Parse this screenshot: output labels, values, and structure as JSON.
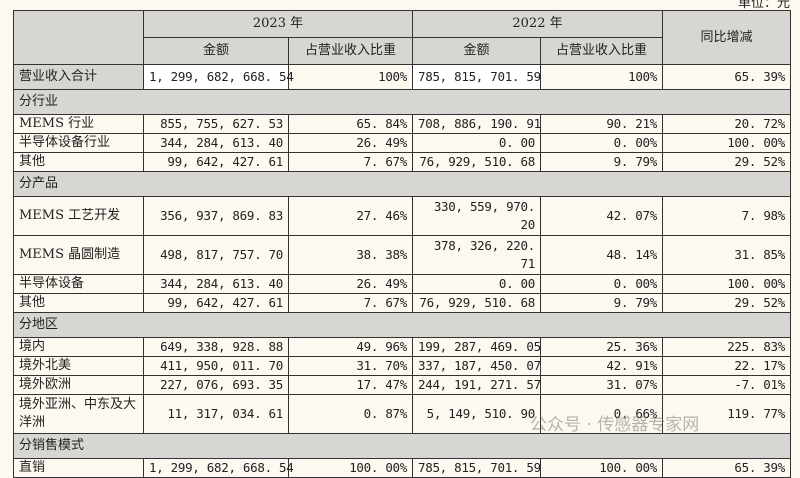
{
  "unit": "单位：元",
  "header": {
    "y2023": "2023 年",
    "y2022": "2022 年",
    "amount": "金额",
    "ratio": "占营业收入比重",
    "yoy": "同比增减"
  },
  "total": {
    "label": "营业收入合计",
    "a23": "1, 299, 682, 668. 54",
    "r23": "100%",
    "a22": "785, 815, 701. 59",
    "r22": "100%",
    "yoy": "65. 39%"
  },
  "sections": [
    {
      "title": "分行业",
      "rows": [
        {
          "label": "MEMS 行业",
          "a23": "855, 755, 627. 53",
          "r23": "65. 84%",
          "a22": "708, 886, 190. 91",
          "r22": "90. 21%",
          "yoy": "20. 72%"
        },
        {
          "label": "半导体设备行业",
          "a23": "344, 284, 613. 40",
          "r23": "26. 49%",
          "a22": "0. 00",
          "r22": "0. 00%",
          "yoy": "100. 00%"
        },
        {
          "label": "其他",
          "a23": "99, 642, 427. 61",
          "r23": "7. 67%",
          "a22": "76, 929, 510. 68",
          "r22": "9. 79%",
          "yoy": "29. 52%"
        }
      ]
    },
    {
      "title": "分产品",
      "rows": [
        {
          "label": "MEMS 工艺开发",
          "a23": "356, 937, 869. 83",
          "r23": "27. 46%",
          "a22": "330, 559, 970. 20",
          "r22": "42. 07%",
          "yoy": "7. 98%"
        },
        {
          "label": "MEMS 晶圆制造",
          "a23": "498, 817, 757. 70",
          "r23": "38. 38%",
          "a22": "378, 326, 220. 71",
          "r22": "48. 14%",
          "yoy": "31. 85%"
        },
        {
          "label": "半导体设备",
          "a23": "344, 284, 613. 40",
          "r23": "26. 49%",
          "a22": "0. 00",
          "r22": "0. 00%",
          "yoy": "100. 00%"
        },
        {
          "label": "其他",
          "a23": "99, 642, 427. 61",
          "r23": "7. 67%",
          "a22": "76, 929, 510. 68",
          "r22": "9. 79%",
          "yoy": "29. 52%"
        }
      ]
    },
    {
      "title": "分地区",
      "rows": [
        {
          "label": "境内",
          "a23": "649, 338, 928. 88",
          "r23": "49. 96%",
          "a22": "199, 287, 469. 05",
          "r22": "25. 36%",
          "yoy": "225. 83%"
        },
        {
          "label": "境外北美",
          "a23": "411, 950, 011. 70",
          "r23": "31. 70%",
          "a22": "337, 187, 450. 07",
          "r22": "42. 91%",
          "yoy": "22. 17%"
        },
        {
          "label": "境外欧洲",
          "a23": "227, 076, 693. 35",
          "r23": "17. 47%",
          "a22": "244, 191, 271. 57",
          "r22": "31. 07%",
          "yoy": "-7. 01%"
        },
        {
          "label": "境外亚洲、中东及大洋洲",
          "a23": "11, 317, 034. 61",
          "r23": "0. 87%",
          "a22": "5, 149, 510. 90",
          "r22": "0. 66%",
          "yoy": "119. 77%"
        }
      ]
    },
    {
      "title": "分销售模式",
      "rows": [
        {
          "label": "直销",
          "a23": "1, 299, 682, 668. 54",
          "r23": "100. 00%",
          "a22": "785, 815, 701. 59",
          "r22": "100. 00%",
          "yoy": "65. 39%"
        }
      ]
    }
  ],
  "watermark": "公众号 · 传感器专家网"
}
